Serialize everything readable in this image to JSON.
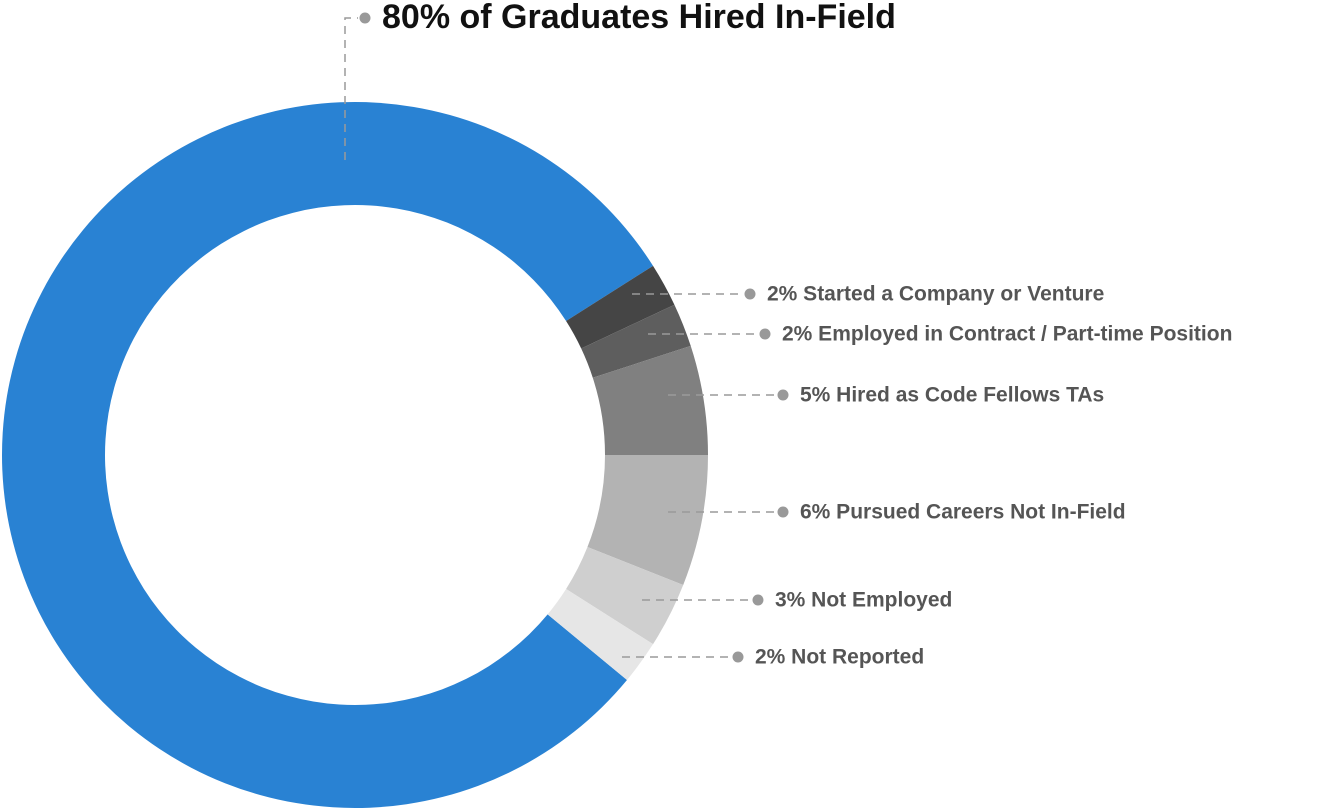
{
  "chart_data": {
    "type": "donut",
    "categories": [
      "80% of Graduates Hired In-Field",
      "2% Started a Company or Venture",
      "2% Employed in Contract / Part-time Position",
      "5% Hired as Code Fellows TAs",
      "6% Pursued Careers Not In-Field",
      "3% Not Employed",
      "2% Not Reported"
    ],
    "values": [
      80,
      2,
      2,
      5,
      6,
      3,
      2
    ],
    "colors": [
      "#2982d3",
      "#454545",
      "#5e5e5e",
      "#808080",
      "#b3b3b3",
      "#cfcfcf",
      "#e6e6e6"
    ]
  }
}
